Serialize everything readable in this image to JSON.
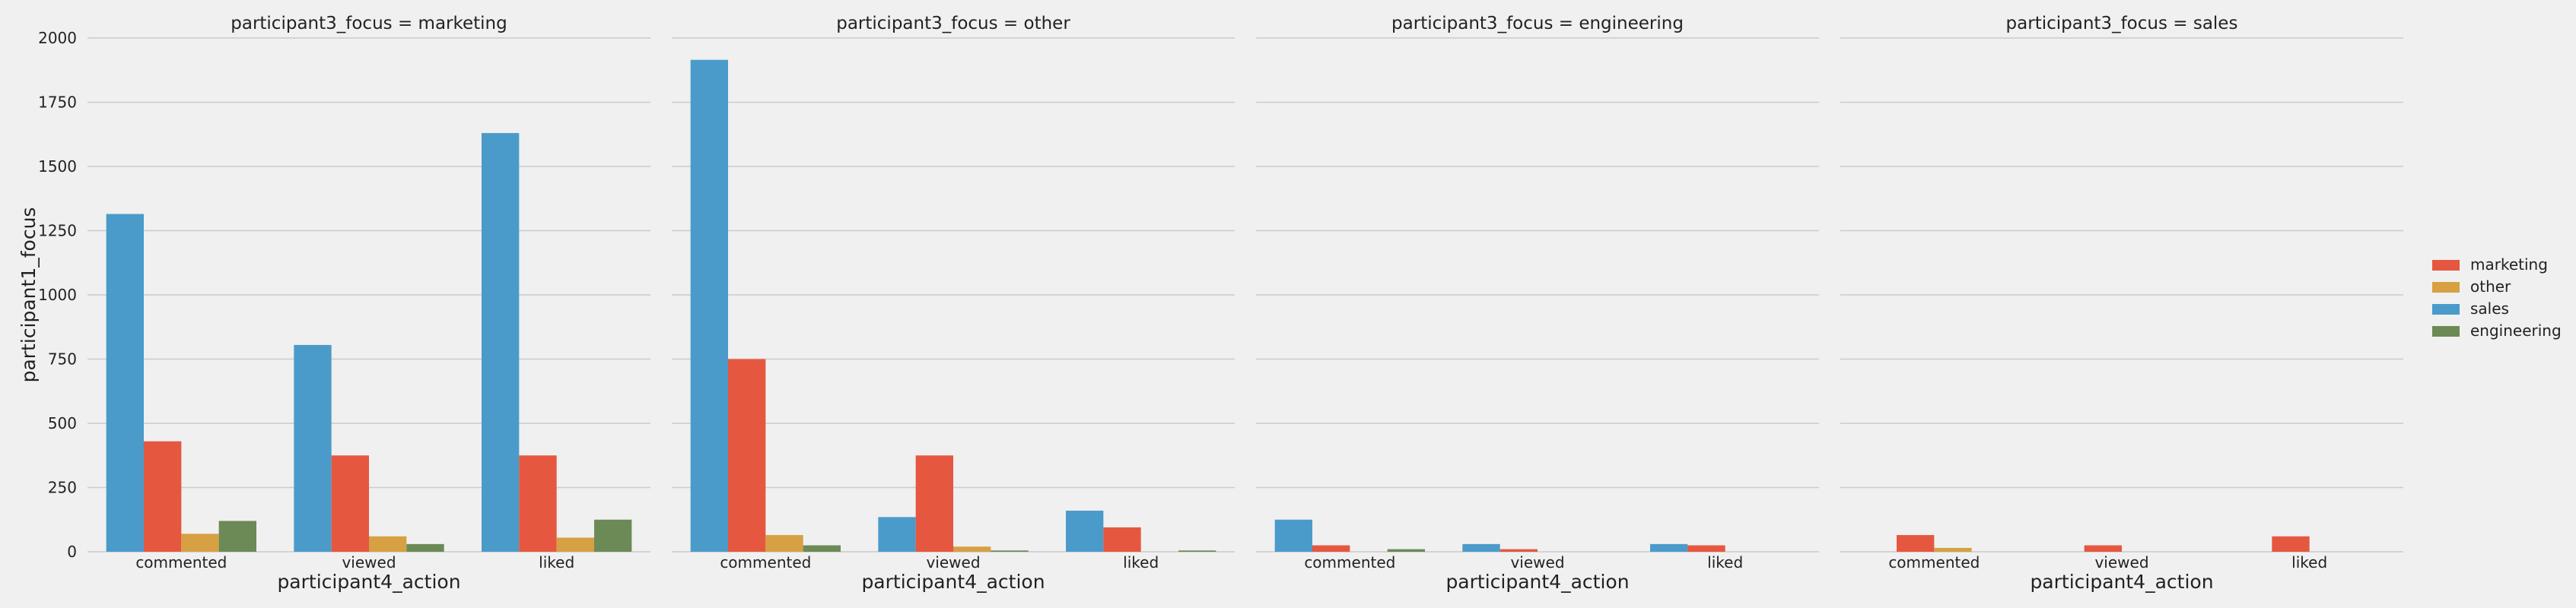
{
  "chart_data": {
    "type": "bar",
    "layout": "facet-columns",
    "facet_variable": "participant3_focus",
    "facet_titles": [
      "participant3_focus = marketing",
      "participant3_focus = other",
      "participant3_focus = engineering",
      "participant3_focus = sales"
    ],
    "categories": [
      "commented",
      "viewed",
      "liked"
    ],
    "xlabel": "participant4_action",
    "ylabel": "participant1_focus",
    "ylim": [
      0,
      2000
    ],
    "yticks": [
      "0",
      "250",
      "500",
      "750",
      "1000",
      "1250",
      "1500",
      "1750",
      "2000"
    ],
    "ytick_values": [
      0,
      250,
      500,
      750,
      1000,
      1250,
      1500,
      1750,
      2000
    ],
    "grid": true,
    "legend_position": "right",
    "hue_order": [
      "sales",
      "marketing",
      "other",
      "engineering"
    ],
    "legend": [
      {
        "name": "marketing",
        "color": "#e5573f"
      },
      {
        "name": "other",
        "color": "#d7a043"
      },
      {
        "name": "sales",
        "color": "#4a9bca"
      },
      {
        "name": "engineering",
        "color": "#6b8a55"
      }
    ],
    "facets": [
      {
        "values": {
          "sales": [
            1315,
            805,
            1630
          ],
          "marketing": [
            430,
            375,
            375
          ],
          "other": [
            70,
            60,
            55
          ],
          "engineering": [
            120,
            30,
            125
          ]
        }
      },
      {
        "values": {
          "sales": [
            1915,
            135,
            160
          ],
          "marketing": [
            750,
            375,
            95
          ],
          "other": [
            65,
            20,
            0
          ],
          "engineering": [
            25,
            5,
            5
          ]
        }
      },
      {
        "values": {
          "sales": [
            125,
            30,
            30
          ],
          "marketing": [
            25,
            10,
            25
          ],
          "other": [
            0,
            0,
            0
          ],
          "engineering": [
            10,
            0,
            0
          ]
        }
      },
      {
        "values": {
          "sales": [
            0,
            0,
            0
          ],
          "marketing": [
            65,
            25,
            60
          ],
          "other": [
            15,
            0,
            0
          ],
          "engineering": [
            0,
            0,
            0
          ]
        }
      }
    ]
  }
}
